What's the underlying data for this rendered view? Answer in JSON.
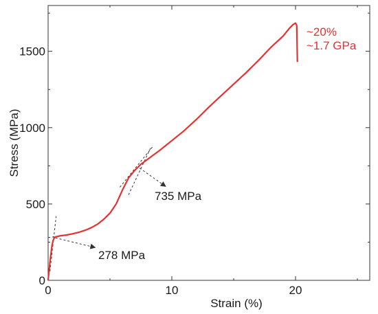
{
  "chart_data": {
    "type": "line",
    "title": "",
    "xlabel": "Strain (%)",
    "ylabel": "Stress (MPa)",
    "xlim": [
      0,
      26
    ],
    "ylim": [
      0,
      1800
    ],
    "x_ticks": [
      0,
      10,
      20
    ],
    "y_ticks": [
      0,
      500,
      1000,
      1500
    ],
    "x_tick_labels": [
      "0",
      "10",
      "20"
    ],
    "y_tick_labels": [
      "0",
      "500",
      "1000",
      "1500"
    ],
    "grid": false,
    "line_color": "#e8302f",
    "series": [
      {
        "x": [
          0,
          0.15,
          0.3,
          0.4,
          0.5,
          0.6,
          0.8,
          1.0,
          1.5,
          2.0,
          2.5,
          3.0,
          3.5,
          4.0,
          4.5,
          5.0,
          5.5,
          6.0,
          6.5,
          7.0,
          7.5,
          8.0,
          9.0,
          10.0,
          11.0,
          12.0,
          13.0,
          14.0,
          15.0,
          16.0,
          17.0,
          18.0,
          19.0,
          19.5,
          19.8,
          20.0,
          20.1,
          20.15
        ],
        "y": [
          0,
          120,
          220,
          260,
          278,
          285,
          288,
          292,
          297,
          305,
          315,
          328,
          345,
          368,
          400,
          440,
          500,
          590,
          670,
          720,
          760,
          790,
          850,
          915,
          980,
          1055,
          1135,
          1210,
          1285,
          1360,
          1440,
          1525,
          1600,
          1650,
          1675,
          1685,
          1670,
          1430
        ]
      }
    ],
    "annotations": [
      {
        "text": "278 MPa",
        "x": 0.6,
        "y": 278,
        "color": "#1a1a1a"
      },
      {
        "text": "735 MPa",
        "x": 7.4,
        "y": 735,
        "color": "#1a1a1a"
      },
      {
        "text": "~20%",
        "x": 20.0,
        "y": 1685,
        "color": "#e8302f"
      },
      {
        "text": "~1.7 GPa",
        "x": 20.0,
        "y": 1685,
        "color": "#e8302f"
      }
    ]
  }
}
